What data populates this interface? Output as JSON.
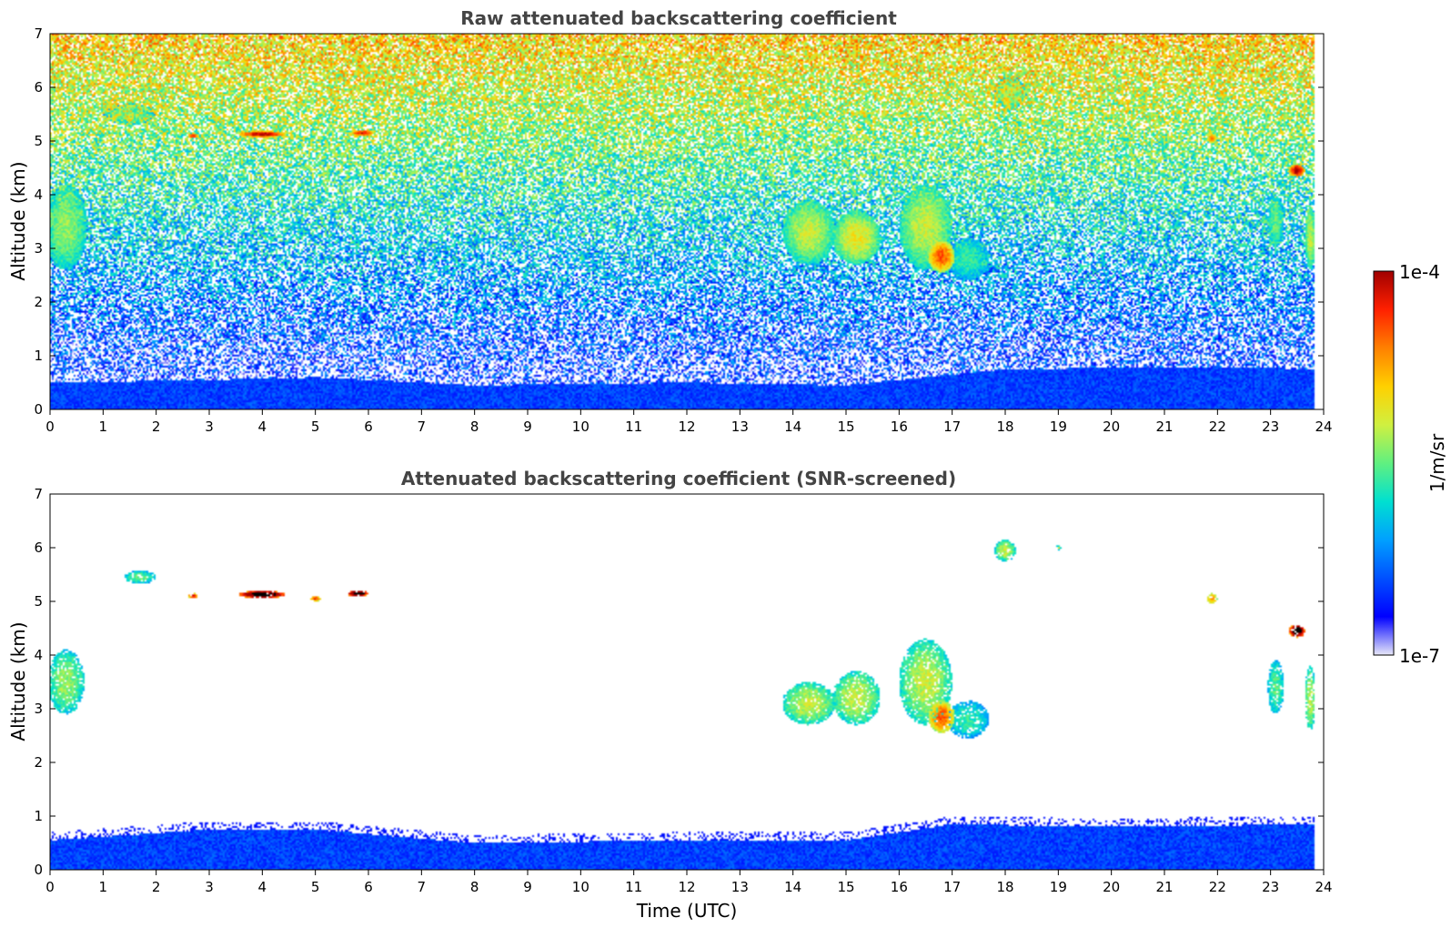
{
  "chart_data": [
    {
      "type": "heatmap",
      "title": "Raw attenuated backscattering coefficient",
      "xlabel": "",
      "ylabel": "Altitude (km)",
      "xlim": [
        0,
        24
      ],
      "ylim": [
        0,
        7
      ],
      "xticks": [
        "0",
        "1",
        "2",
        "3",
        "4",
        "5",
        "6",
        "7",
        "8",
        "9",
        "10",
        "11",
        "12",
        "13",
        "14",
        "15",
        "16",
        "17",
        "18",
        "19",
        "20",
        "21",
        "22",
        "23",
        "24"
      ],
      "yticks": [
        "0",
        "1",
        "2",
        "3",
        "4",
        "5",
        "6",
        "7"
      ],
      "noise": "strong",
      "boundary_layer": [
        [
          0,
          0.5
        ],
        [
          3,
          0.55
        ],
        [
          5,
          0.6
        ],
        [
          8,
          0.45
        ],
        [
          12,
          0.5
        ],
        [
          15,
          0.45
        ],
        [
          18,
          0.75
        ],
        [
          22,
          0.8
        ],
        [
          23.8,
          0.75
        ]
      ],
      "features": [
        {
          "x": 0.3,
          "y": 3.4,
          "w": 0.4,
          "h": 0.8,
          "level": 0.55
        },
        {
          "x": 1.5,
          "y": 5.5,
          "w": 0.5,
          "h": 0.2,
          "level": 0.5
        },
        {
          "x": 2.7,
          "y": 5.1,
          "w": 0.1,
          "h": 0.05,
          "level": 0.95
        },
        {
          "x": 4.0,
          "y": 5.13,
          "w": 0.45,
          "h": 0.06,
          "level": 1.0
        },
        {
          "x": 5.9,
          "y": 5.15,
          "w": 0.22,
          "h": 0.06,
          "level": 0.95
        },
        {
          "x": 14.3,
          "y": 3.3,
          "w": 0.5,
          "h": 0.6,
          "level": 0.6
        },
        {
          "x": 15.2,
          "y": 3.2,
          "w": 0.45,
          "h": 0.5,
          "level": 0.65
        },
        {
          "x": 16.5,
          "y": 3.4,
          "w": 0.5,
          "h": 0.8,
          "level": 0.6
        },
        {
          "x": 16.8,
          "y": 2.85,
          "w": 0.25,
          "h": 0.3,
          "level": 0.85
        },
        {
          "x": 17.3,
          "y": 2.8,
          "w": 0.4,
          "h": 0.4,
          "level": 0.45
        },
        {
          "x": 18.1,
          "y": 5.9,
          "w": 0.3,
          "h": 0.3,
          "level": 0.55
        },
        {
          "x": 21.9,
          "y": 5.05,
          "w": 0.1,
          "h": 0.1,
          "level": 0.8
        },
        {
          "x": 23.5,
          "y": 4.45,
          "w": 0.15,
          "h": 0.12,
          "level": 1.0
        },
        {
          "x": 23.1,
          "y": 3.5,
          "w": 0.15,
          "h": 0.5,
          "level": 0.5
        },
        {
          "x": 23.75,
          "y": 3.2,
          "w": 0.1,
          "h": 0.6,
          "level": 0.6
        }
      ]
    },
    {
      "type": "heatmap",
      "title": "Attenuated backscattering coefficient (SNR-screened)",
      "xlabel": "Time (UTC)",
      "ylabel": "Altitude (km)",
      "xlim": [
        0,
        24
      ],
      "ylim": [
        0,
        7
      ],
      "xticks": [
        "0",
        "1",
        "2",
        "3",
        "4",
        "5",
        "6",
        "7",
        "8",
        "9",
        "10",
        "11",
        "12",
        "13",
        "14",
        "15",
        "16",
        "17",
        "18",
        "19",
        "20",
        "21",
        "22",
        "23",
        "24"
      ],
      "yticks": [
        "0",
        "1",
        "2",
        "3",
        "4",
        "5",
        "6",
        "7"
      ],
      "noise": "screened",
      "boundary_layer": [
        [
          0,
          0.55
        ],
        [
          3,
          0.75
        ],
        [
          5,
          0.75
        ],
        [
          8,
          0.5
        ],
        [
          12,
          0.55
        ],
        [
          15,
          0.55
        ],
        [
          17,
          0.85
        ],
        [
          20,
          0.8
        ],
        [
          23.8,
          0.85
        ]
      ],
      "features": [
        {
          "x": 0.3,
          "y": 3.5,
          "w": 0.35,
          "h": 0.6,
          "level": 0.55
        },
        {
          "x": 1.7,
          "y": 5.45,
          "w": 0.3,
          "h": 0.12,
          "level": 0.5
        },
        {
          "x": 2.7,
          "y": 5.1,
          "w": 0.1,
          "h": 0.05,
          "level": 0.95
        },
        {
          "x": 4.0,
          "y": 5.13,
          "w": 0.45,
          "h": 0.07,
          "level": 1.2
        },
        {
          "x": 5.0,
          "y": 5.05,
          "w": 0.1,
          "h": 0.05,
          "level": 0.9
        },
        {
          "x": 5.8,
          "y": 5.15,
          "w": 0.2,
          "h": 0.06,
          "level": 1.2
        },
        {
          "x": 14.3,
          "y": 3.1,
          "w": 0.5,
          "h": 0.4,
          "level": 0.6
        },
        {
          "x": 15.2,
          "y": 3.2,
          "w": 0.45,
          "h": 0.5,
          "level": 0.6
        },
        {
          "x": 16.5,
          "y": 3.5,
          "w": 0.5,
          "h": 0.8,
          "level": 0.6
        },
        {
          "x": 16.8,
          "y": 2.85,
          "w": 0.25,
          "h": 0.3,
          "level": 0.85
        },
        {
          "x": 17.3,
          "y": 2.8,
          "w": 0.4,
          "h": 0.35,
          "level": 0.45
        },
        {
          "x": 18.0,
          "y": 5.95,
          "w": 0.2,
          "h": 0.2,
          "level": 0.6
        },
        {
          "x": 19.0,
          "y": 6.0,
          "w": 0.05,
          "h": 0.04,
          "level": 0.6
        },
        {
          "x": 21.9,
          "y": 5.05,
          "w": 0.1,
          "h": 0.1,
          "level": 0.8
        },
        {
          "x": 23.5,
          "y": 4.45,
          "w": 0.15,
          "h": 0.12,
          "level": 1.2
        },
        {
          "x": 23.1,
          "y": 3.4,
          "w": 0.15,
          "h": 0.5,
          "level": 0.5
        },
        {
          "x": 23.75,
          "y": 3.2,
          "w": 0.1,
          "h": 0.6,
          "level": 0.6
        }
      ]
    }
  ],
  "colorbar": {
    "label": "1/m/sr",
    "top_label": "1e-4",
    "bottom_label": "1e-7",
    "colormap": [
      "#e8e8f8",
      "#0000ff",
      "#0050ff",
      "#00a0ff",
      "#00e0d0",
      "#60f080",
      "#d0f040",
      "#ffd000",
      "#ff8000",
      "#ff2000",
      "#a00000"
    ]
  }
}
